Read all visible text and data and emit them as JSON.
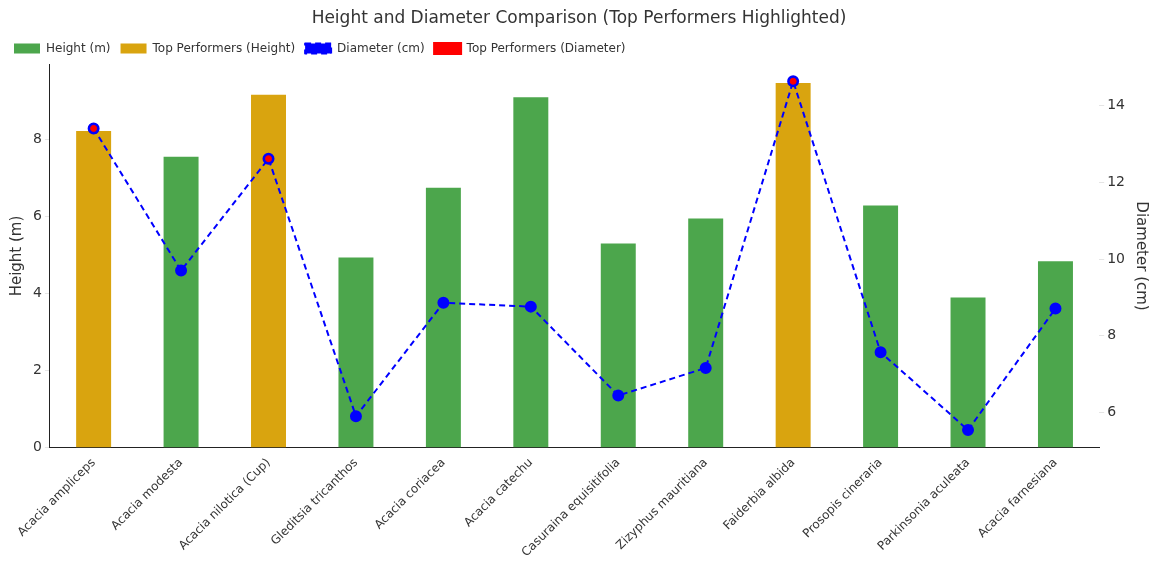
{
  "chart_data": {
    "type": "bar",
    "title": "Height and Diameter Comparison (Top Performers Highlighted)",
    "ylabel": "Height (m)",
    "y2label": "Diameter (cm)",
    "categories": [
      "Acacia ampliceps",
      "Acacia modesta",
      "Acacia nilotica (Cup)",
      "Gleditsia tricanthos",
      "Acacia coriacea",
      "Acacia catechu",
      "Casuraina equisitifolia",
      "Zizyphus mauritiana",
      "Faiderbia albida",
      "Prosopis cineraria",
      "Parkinsonia aculeata",
      "Acacia farnesiana"
    ],
    "series": [
      {
        "name": "Height (m)",
        "color": "#4ca64c",
        "values": [
          null,
          7.55,
          null,
          4.94,
          6.75,
          9.1,
          5.3,
          5.95,
          null,
          6.29,
          3.9,
          4.84
        ]
      },
      {
        "name": "Top Performers (Height)",
        "color": "#d9a40f",
        "values": [
          8.22,
          null,
          9.16,
          null,
          null,
          null,
          null,
          null,
          9.47,
          null,
          null,
          null
        ]
      },
      {
        "name": "Diameter (cm)",
        "type": "line",
        "axis": "y2",
        "color": "#0000ff",
        "line_style": "dashed",
        "marker": "circle",
        "values": [
          13.41,
          9.7,
          12.62,
          5.9,
          8.86,
          8.76,
          6.44,
          7.16,
          14.64,
          7.57,
          5.54,
          8.71
        ]
      },
      {
        "name": "Top Performers (Diameter)",
        "type": "scatter",
        "axis": "y2",
        "color": "#ff0000",
        "marker": "circle",
        "x": [
          "Acacia ampliceps",
          "Acacia nilotica (Cup)",
          "Faiderbia albida"
        ],
        "values": [
          13.41,
          12.62,
          14.64
        ]
      }
    ],
    "ylim": [
      0,
      9.95
    ],
    "yticks": [
      0,
      2,
      4,
      6,
      8
    ],
    "y2lim": [
      5.08,
      15.08
    ],
    "y2ticks": [
      6,
      8,
      10,
      12,
      14
    ],
    "grid": false,
    "legend": "top left"
  }
}
